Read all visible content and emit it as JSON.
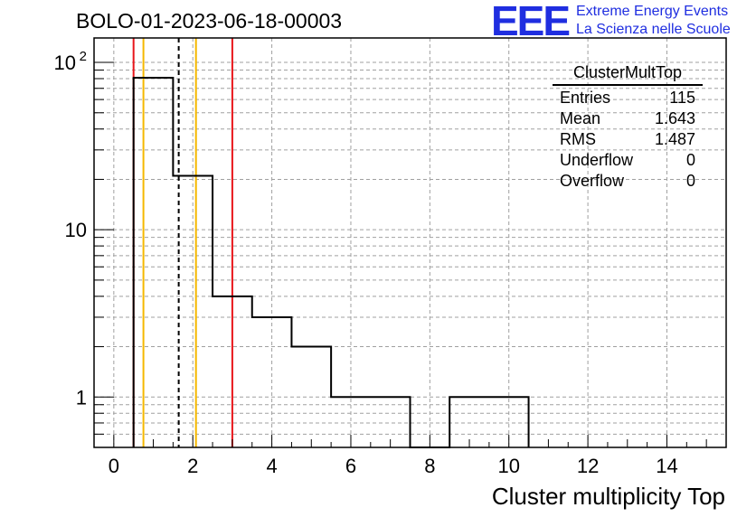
{
  "header": {
    "title": "BOLO-01-2023-06-18-00003",
    "logo_mark": "EEE",
    "logo_line1": "Extreme Energy Events",
    "logo_line2": "La Scienza nelle Scuole",
    "logo_color": "#1f2ee0"
  },
  "stats": {
    "name": "ClusterMultTop",
    "rows": [
      {
        "label": "Entries",
        "value": "115"
      },
      {
        "label": "Mean",
        "value": "1.643"
      },
      {
        "label": "RMS",
        "value": "1.487"
      },
      {
        "label": "Underflow",
        "value": "0"
      },
      {
        "label": "Overflow",
        "value": "0"
      }
    ]
  },
  "chart_data": {
    "type": "histogram",
    "xlabel": "Cluster multiplicity Top",
    "ylabel": "",
    "xlim": [
      -0.5,
      15.5
    ],
    "ylim": [
      0.5,
      140
    ],
    "yscale": "log",
    "grid": true,
    "bins": [
      {
        "x0": 0.5,
        "x1": 1.5,
        "value": 81
      },
      {
        "x0": 1.5,
        "x1": 2.5,
        "value": 21
      },
      {
        "x0": 2.5,
        "x1": 3.5,
        "value": 4
      },
      {
        "x0": 3.5,
        "x1": 4.5,
        "value": 3
      },
      {
        "x0": 4.5,
        "x1": 5.5,
        "value": 2
      },
      {
        "x0": 5.5,
        "x1": 6.5,
        "value": 1
      },
      {
        "x0": 6.5,
        "x1": 7.5,
        "value": 1
      },
      {
        "x0": 7.5,
        "x1": 8.5,
        "value": 0
      },
      {
        "x0": 8.5,
        "x1": 9.5,
        "value": 1
      },
      {
        "x0": 9.5,
        "x1": 10.5,
        "value": 1
      }
    ],
    "xticks": [
      0,
      2,
      4,
      6,
      8,
      10,
      12,
      14
    ],
    "yticks": [
      {
        "value": 1,
        "label": "1"
      },
      {
        "value": 10,
        "label": "10"
      },
      {
        "value": 100,
        "label": "10",
        "exponent": "2"
      }
    ],
    "vertical_lines": [
      {
        "x": 0.5,
        "color": "#e8161b",
        "style": "solid"
      },
      {
        "x": 0.75,
        "color": "#f5b800",
        "style": "solid"
      },
      {
        "x": 1.643,
        "color": "#000000",
        "style": "dashed"
      },
      {
        "x": 2.08,
        "color": "#f5b800",
        "style": "solid"
      },
      {
        "x": 3.0,
        "color": "#e8161b",
        "style": "solid"
      }
    ]
  }
}
